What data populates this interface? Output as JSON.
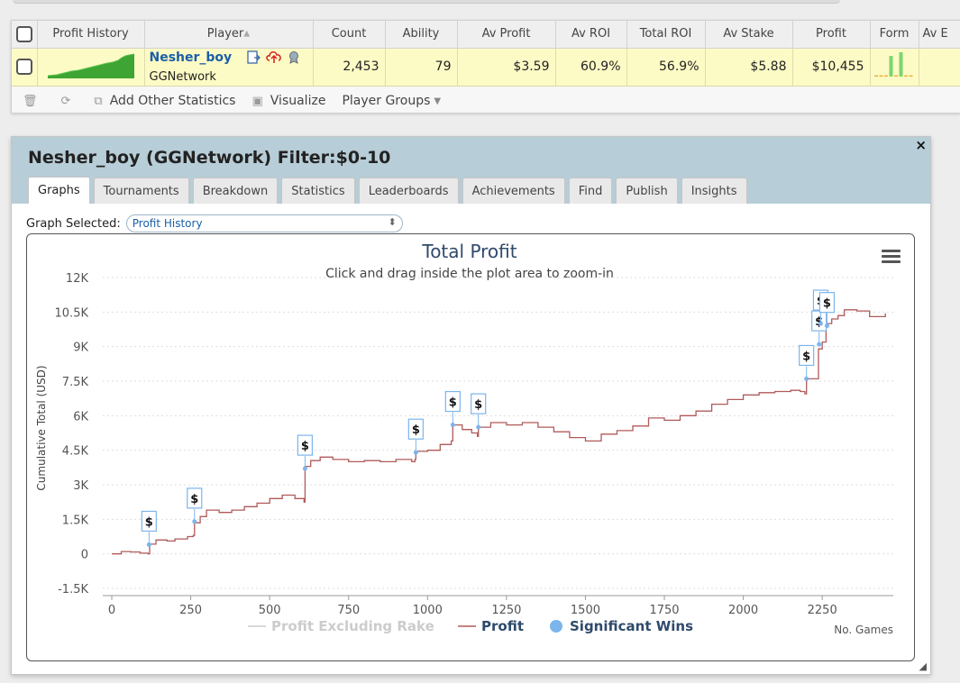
{
  "table": {
    "headers": {
      "profit_history": "Profit History",
      "player": "Player",
      "count": "Count",
      "ability": "Ability",
      "av_profit": "Av Profit",
      "av_roi": "Av ROI",
      "total_roi": "Total ROI",
      "av_stake": "Av Stake",
      "profit": "Profit",
      "form": "Form",
      "av_e": "Av E"
    },
    "row": {
      "player_name": "Nesher_boy",
      "network": "GGNetwork",
      "count": "2,453",
      "ability": "79",
      "av_profit": "$3.59",
      "av_roi": "60.9%",
      "total_roi": "56.9%",
      "av_stake": "$5.88",
      "profit": "$10,455",
      "form_bars": [
        0.05,
        0.05,
        0.05,
        0.85,
        0.05,
        1.0,
        0.05,
        0.05
      ]
    },
    "toolbar": {
      "add_other": "Add Other Statistics",
      "visualize": "Visualize",
      "player_groups": "Player Groups"
    }
  },
  "panel": {
    "title": "Nesher_boy (GGNetwork) Filter:$0-10",
    "close_glyph": "×",
    "tabs": [
      "Graphs",
      "Tournaments",
      "Breakdown",
      "Statistics",
      "Leaderboards",
      "Achievements",
      "Find",
      "Publish",
      "Insights"
    ],
    "active_tab": "Graphs",
    "graph_selected_label": "Graph Selected:",
    "graph_selected_value": "Profit History"
  },
  "chart_data": {
    "type": "line",
    "title": "Total Profit",
    "subtitle": "Click and drag inside the plot area to zoom-in",
    "ylabel": "Cumulative Total (USD)",
    "xlabel": "No. Games",
    "xlim": [
      0,
      2475
    ],
    "ylim": [
      -1500,
      12000
    ],
    "x_ticks": [
      0,
      250,
      500,
      750,
      1000,
      1250,
      1500,
      1750,
      2000,
      2250
    ],
    "y_ticks": [
      -1500,
      0,
      1500,
      3000,
      4500,
      6000,
      7500,
      9000,
      10500,
      12000
    ],
    "y_tick_labels": [
      "-1.5K",
      "0",
      "1.5K",
      "3K",
      "4.5K",
      "6K",
      "7.5K",
      "9K",
      "10.5K",
      "12K"
    ],
    "grid": "horizontal",
    "legend": "bottom-center",
    "colors": {
      "profit": "#b05a5a",
      "profit_excl_rake": "#cccccc",
      "significant_wins": "#7cb5ec"
    },
    "series": [
      {
        "name": "Profit",
        "points": [
          [
            0,
            0
          ],
          [
            30,
            100
          ],
          [
            60,
            80
          ],
          [
            90,
            30
          ],
          [
            115,
            0
          ],
          [
            120,
            420
          ],
          [
            140,
            600
          ],
          [
            175,
            560
          ],
          [
            200,
            650
          ],
          [
            240,
            750
          ],
          [
            258,
            800
          ],
          [
            262,
            1350
          ],
          [
            280,
            1620
          ],
          [
            300,
            1900
          ],
          [
            340,
            1800
          ],
          [
            380,
            1900
          ],
          [
            420,
            2050
          ],
          [
            460,
            2200
          ],
          [
            500,
            2400
          ],
          [
            540,
            2550
          ],
          [
            580,
            2400
          ],
          [
            609,
            2250
          ],
          [
            612,
            3800
          ],
          [
            630,
            4050
          ],
          [
            660,
            4200
          ],
          [
            700,
            4100
          ],
          [
            750,
            4000
          ],
          [
            800,
            4050
          ],
          [
            850,
            4000
          ],
          [
            900,
            4100
          ],
          [
            950,
            4000
          ],
          [
            960,
            4100
          ],
          [
            963,
            4450
          ],
          [
            1000,
            4500
          ],
          [
            1040,
            4750
          ],
          [
            1075,
            4900
          ],
          [
            1080,
            5600
          ],
          [
            1110,
            5400
          ],
          [
            1140,
            5250
          ],
          [
            1158,
            5100
          ],
          [
            1161,
            5500
          ],
          [
            1200,
            5700
          ],
          [
            1250,
            5600
          ],
          [
            1300,
            5700
          ],
          [
            1350,
            5500
          ],
          [
            1400,
            5300
          ],
          [
            1450,
            5050
          ],
          [
            1500,
            4900
          ],
          [
            1550,
            5200
          ],
          [
            1600,
            5350
          ],
          [
            1650,
            5550
          ],
          [
            1700,
            5900
          ],
          [
            1750,
            5800
          ],
          [
            1800,
            6000
          ],
          [
            1850,
            6200
          ],
          [
            1900,
            6500
          ],
          [
            1950,
            6700
          ],
          [
            2000,
            6900
          ],
          [
            2050,
            7000
          ],
          [
            2100,
            7050
          ],
          [
            2150,
            7100
          ],
          [
            2180,
            7050
          ],
          [
            2195,
            6950
          ],
          [
            2200,
            7600
          ],
          [
            2220,
            7600
          ],
          [
            2235,
            7600
          ],
          [
            2238,
            8900
          ],
          [
            2250,
            9200
          ],
          [
            2262,
            10000
          ],
          [
            2280,
            10200
          ],
          [
            2300,
            10350
          ],
          [
            2320,
            10600
          ],
          [
            2360,
            10550
          ],
          [
            2400,
            10300
          ],
          [
            2430,
            10300
          ],
          [
            2450,
            10450
          ]
        ]
      },
      {
        "name": "Significant Wins",
        "points": [
          [
            118,
            400
          ],
          [
            262,
            1400
          ],
          [
            612,
            3700
          ],
          [
            963,
            4400
          ],
          [
            1080,
            5600
          ],
          [
            1161,
            5500
          ],
          [
            2200,
            7600
          ],
          [
            2240,
            9100
          ],
          [
            2245,
            10000
          ],
          [
            2265,
            9900
          ]
        ]
      }
    ],
    "legend_entries": [
      "Profit Excluding Rake",
      "Profit",
      "Significant Wins"
    ],
    "marker_label": "$"
  }
}
